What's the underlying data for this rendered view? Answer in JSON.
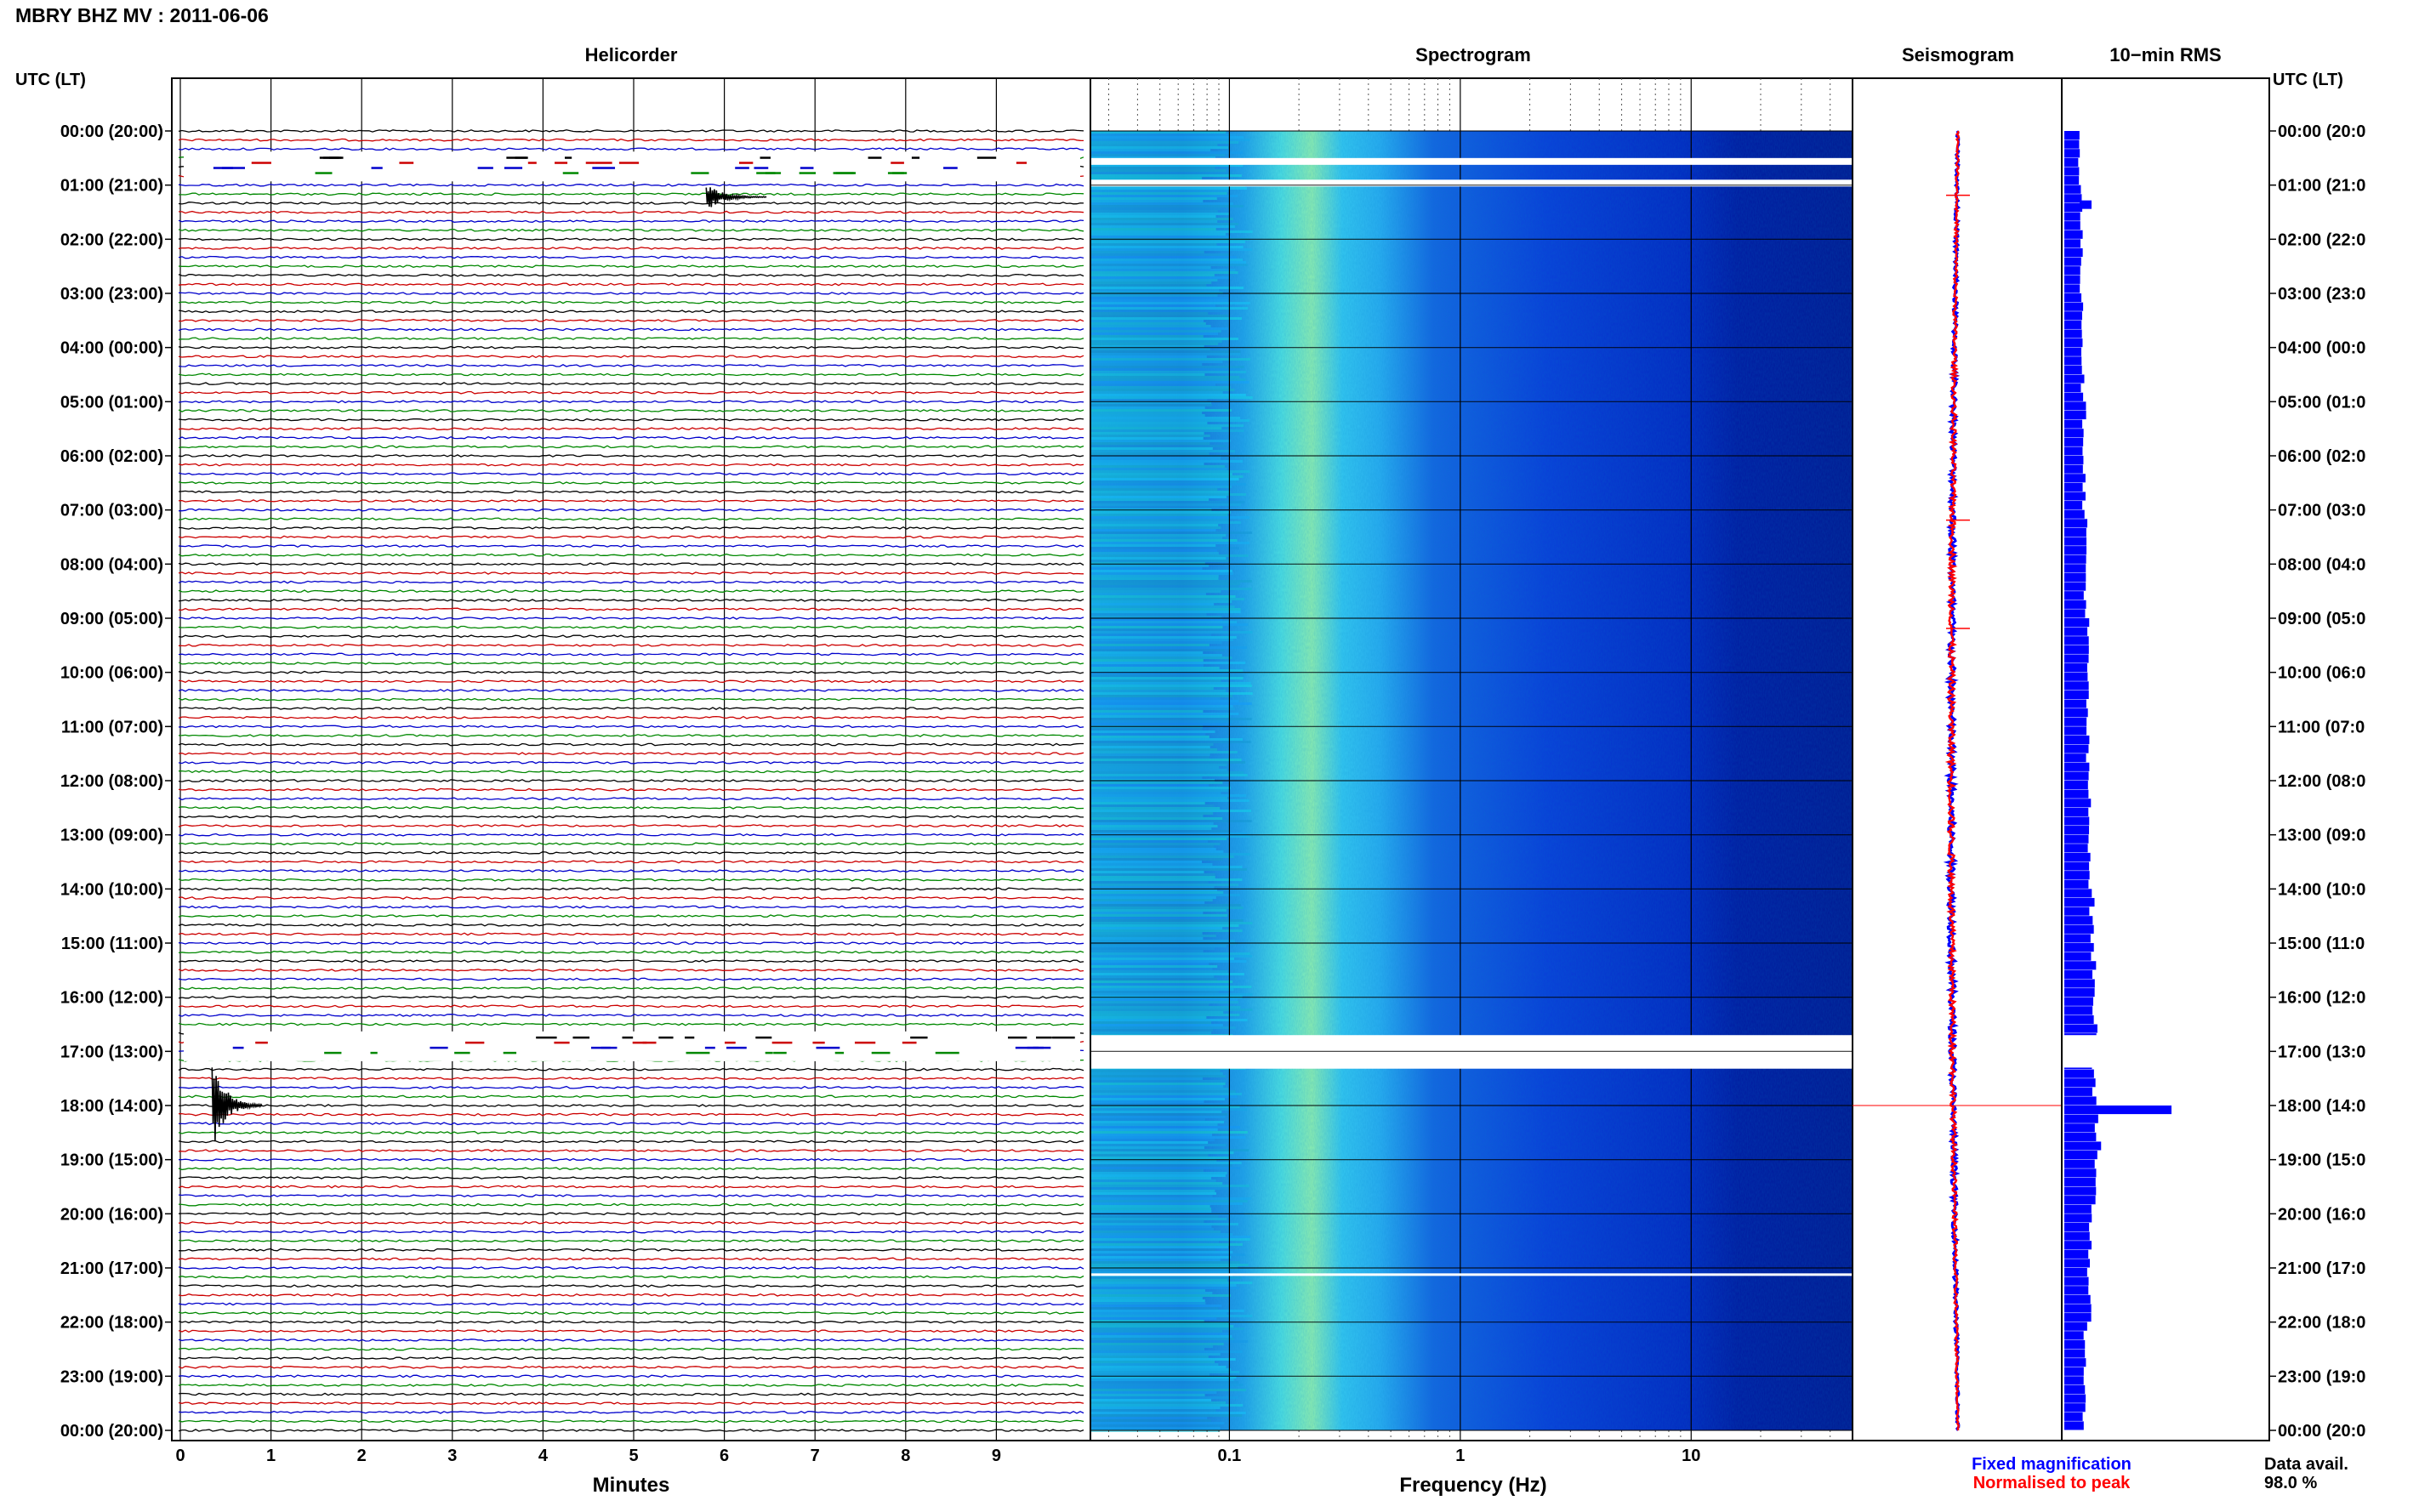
{
  "title": "MBRY BHZ MV : 2011-06-06",
  "panels": {
    "helicorder": "Helicorder",
    "spectrogram": "Spectrogram",
    "seismogram": "Seismogram",
    "rms": "10−min RMS"
  },
  "time_axis_label": "UTC (LT)",
  "time_labels_left": [
    "00:00 (20:00)",
    "01:00 (21:00)",
    "02:00 (22:00)",
    "03:00 (23:00)",
    "04:00 (00:00)",
    "05:00 (01:00)",
    "06:00 (02:00)",
    "07:00 (03:00)",
    "08:00 (04:00)",
    "09:00 (05:00)",
    "10:00 (06:00)",
    "11:00 (07:00)",
    "12:00 (08:00)",
    "13:00 (09:00)",
    "14:00 (10:00)",
    "15:00 (11:00)",
    "16:00 (12:00)",
    "17:00 (13:00)",
    "18:00 (14:00)",
    "19:00 (15:00)",
    "20:00 (16:00)",
    "21:00 (17:00)",
    "22:00 (18:00)",
    "23:00 (19:00)",
    "00:00 (20:00)"
  ],
  "time_labels_right": [
    "00:00 (20:0",
    "01:00 (21:0",
    "02:00 (22:0",
    "03:00 (23:0",
    "04:00 (00:0",
    "05:00 (01:0",
    "06:00 (02:0",
    "07:00 (03:0",
    "08:00 (04:0",
    "09:00 (05:0",
    "10:00 (06:0",
    "11:00 (07:0",
    "12:00 (08:0",
    "13:00 (09:0",
    "14:00 (10:0",
    "15:00 (11:0",
    "16:00 (12:0",
    "17:00 (13:0",
    "18:00 (14:0",
    "19:00 (15:0",
    "20:00 (16:0",
    "21:00 (17:0",
    "22:00 (18:0",
    "23:00 (19:0",
    "00:00 (20:0"
  ],
  "chart_data": [
    {
      "type": "line",
      "panel": "Helicorder",
      "xlabel": "Minutes",
      "x_ticks": [
        "0",
        "1",
        "2",
        "3",
        "4",
        "5",
        "6",
        "7",
        "8",
        "9"
      ],
      "xlim": [
        0,
        10
      ],
      "trace_colors": [
        "#000000",
        "#cc0000",
        "#0000cc",
        "#008800"
      ],
      "traces_per_hour": 6,
      "events": [
        {
          "hour": 1,
          "minute": 5.8,
          "amplitude": 0.3
        },
        {
          "hour": 18,
          "minute": 0.35,
          "amplitude": 1.0
        }
      ],
      "gaps_hours": [
        0.35,
        16.6
      ]
    },
    {
      "type": "heatmap",
      "panel": "Spectrogram",
      "xlabel": "Frequency (Hz)",
      "x_scale": "log",
      "x_ticks": [
        "0.1",
        "1",
        "10"
      ],
      "xlim": [
        0.025,
        50
      ],
      "peak_frequency_hz": 0.3,
      "secondary_peak_hz": 0.6,
      "gaps_hours": [
        0.6,
        1.0,
        17.0,
        17.5
      ],
      "colors": [
        "#00007f",
        "#0000ff",
        "#0080ff",
        "#00ffff",
        "#80ff80"
      ]
    },
    {
      "type": "line",
      "panel": "Seismogram",
      "series": [
        {
          "name": "Fixed magnification",
          "color": "#0000ff"
        },
        {
          "name": "Normalised to peak",
          "color": "#ff0000"
        }
      ],
      "event_hour": 18
    },
    {
      "type": "bar",
      "panel": "10−min RMS",
      "orientation": "horizontal",
      "color": "#0000ff",
      "values": [
        1.0,
        1.1,
        1.1,
        1.2,
        1.2,
        1.3,
        1.3,
        1.4,
        1.4,
        1.5,
        1.5,
        1.5,
        1.6,
        1.7,
        1.8,
        1.9,
        2.0,
        2.0,
        7.0,
        1.9,
        1.7,
        1.6,
        1.4,
        1.3
      ],
      "spike_hour": 18
    }
  ],
  "legend": {
    "fixed": "Fixed magnification",
    "normalised": "Normalised to peak"
  },
  "data_avail": {
    "label": "Data avail.",
    "value": "98.0 %"
  }
}
